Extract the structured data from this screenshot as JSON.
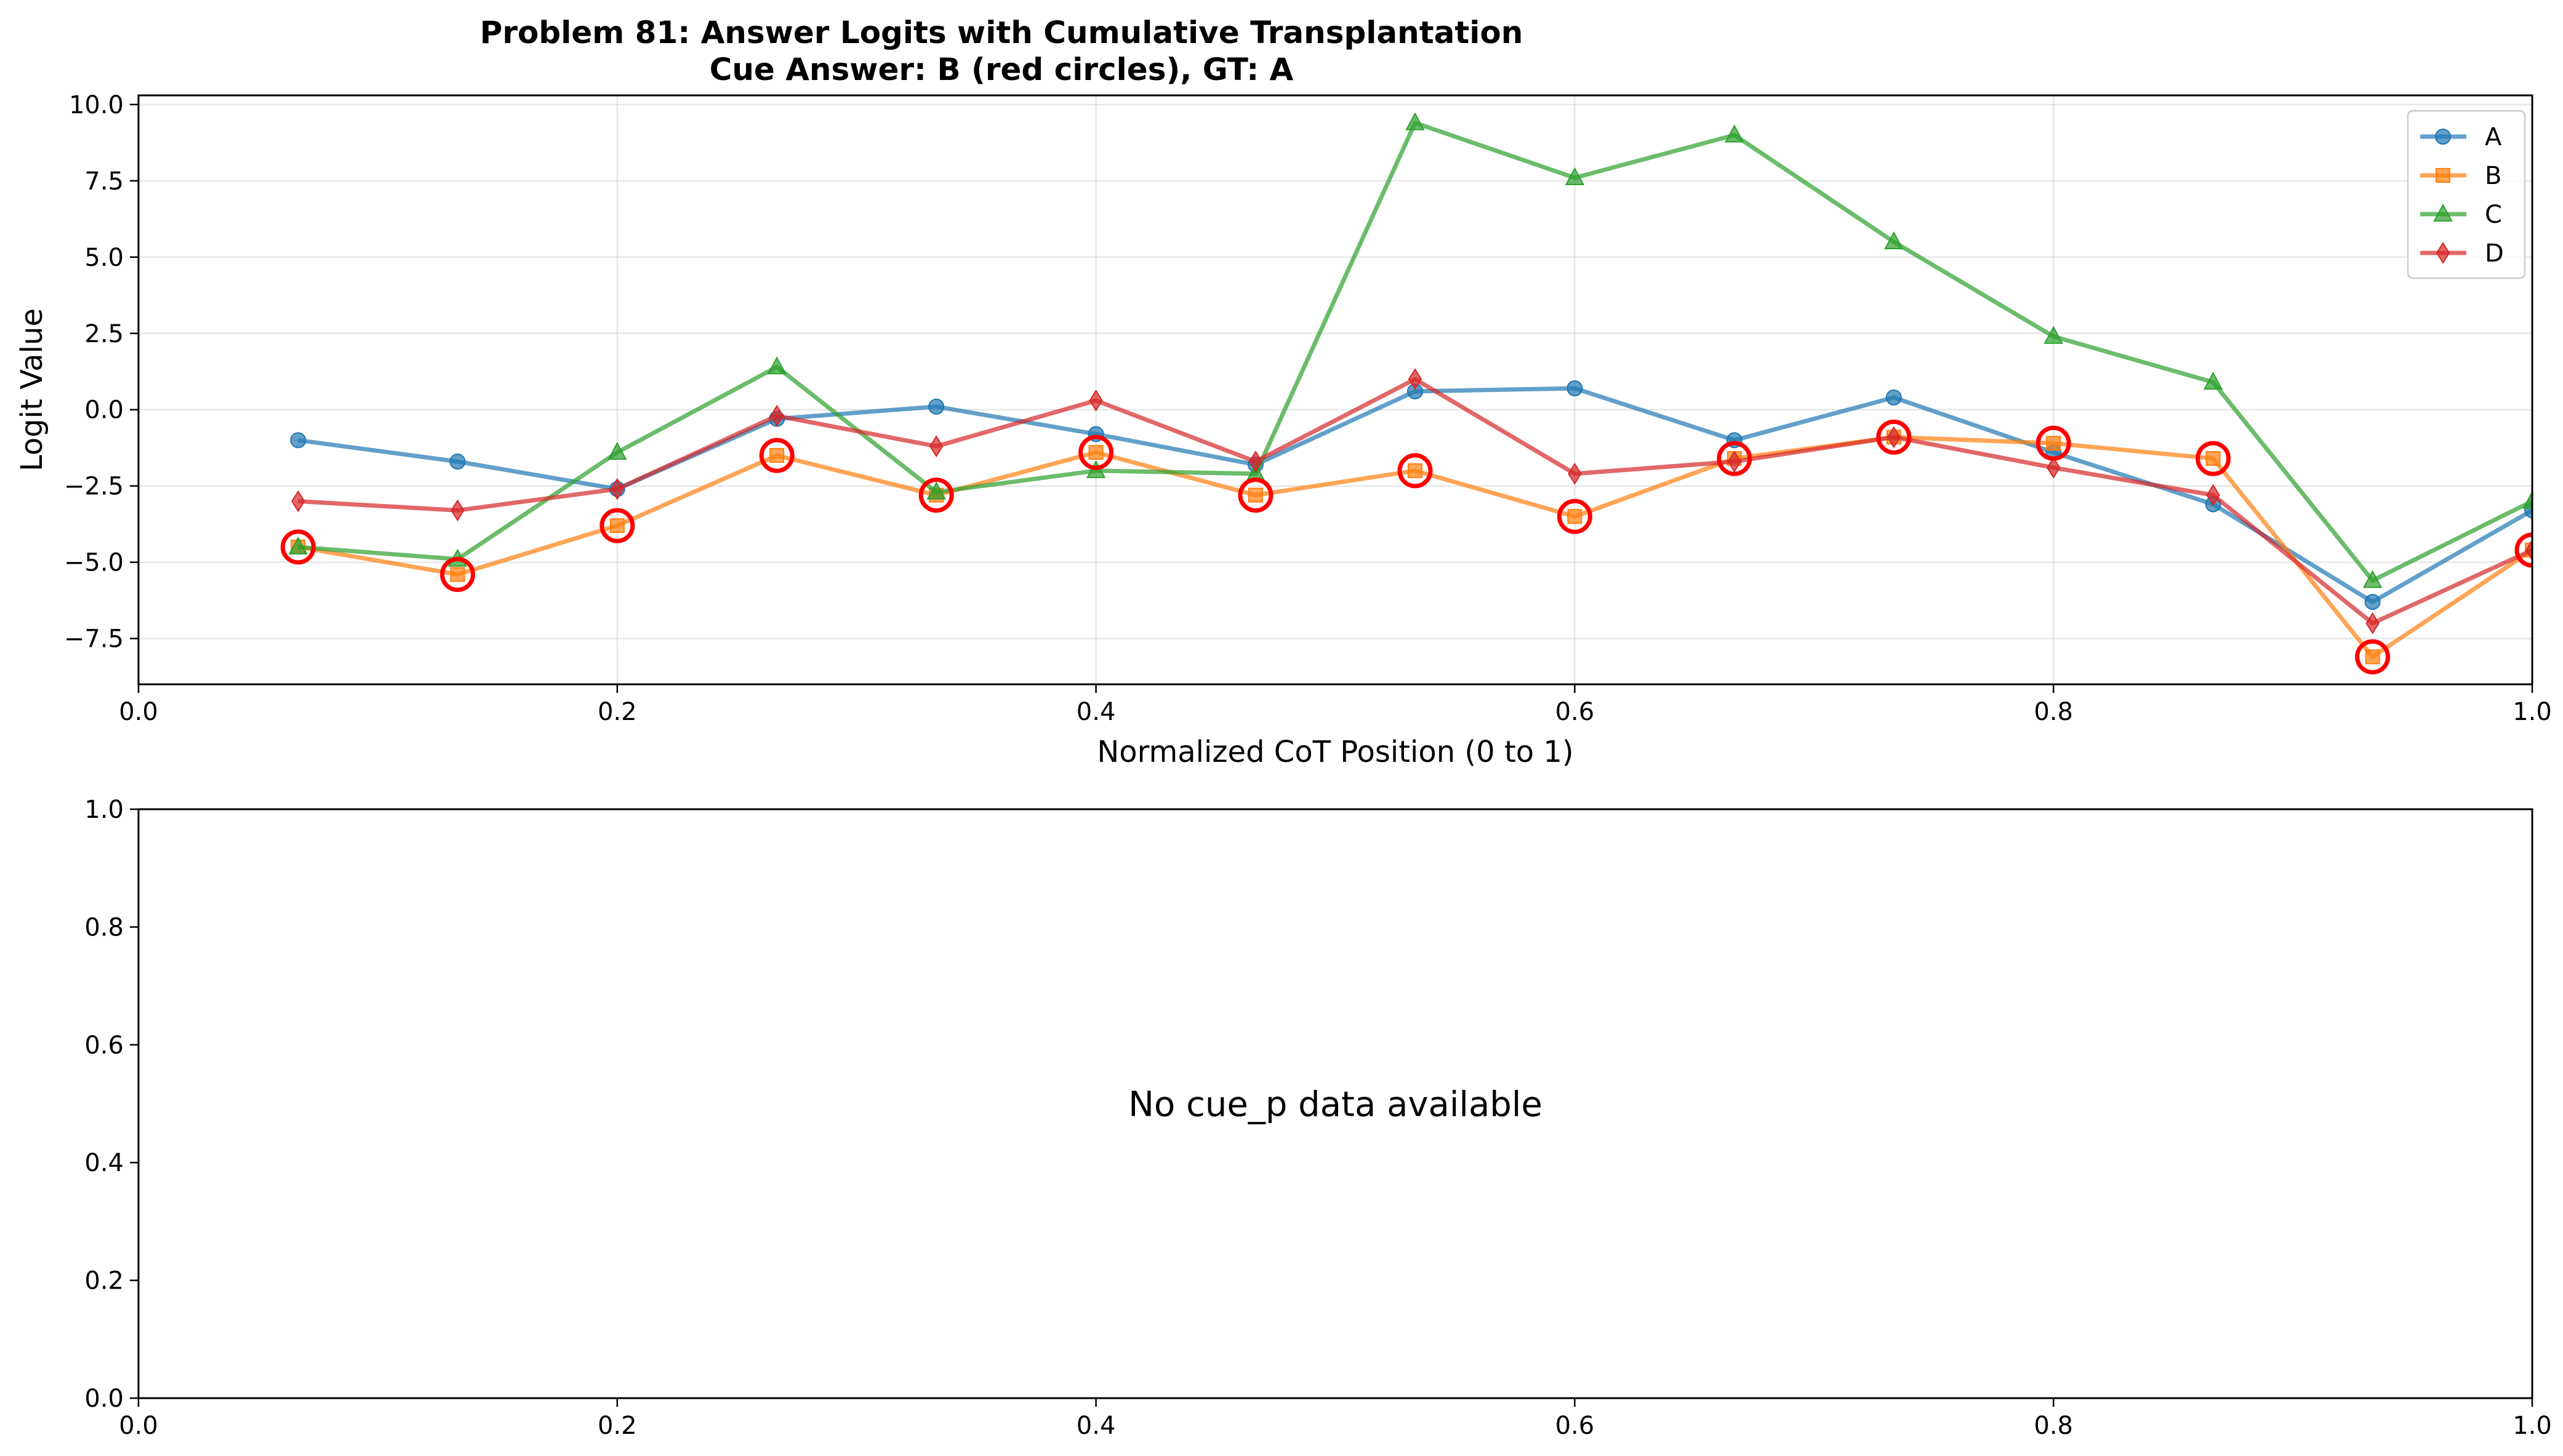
{
  "chart_data": [
    {
      "type": "line",
      "title": "Problem 81: Answer Logits with Cumulative Transplantation",
      "subtitle": "Cue Answer: B (red circles), GT: A",
      "xlabel": "Normalized CoT Position (0 to 1)",
      "ylabel": "Logit Value",
      "xlim": [
        0.0,
        1.0
      ],
      "ylim": [
        -9.0,
        10.3
      ],
      "xticks": [
        "0.0",
        "0.2",
        "0.4",
        "0.6",
        "0.8",
        "1.0"
      ],
      "yticks": [
        "−7.5",
        "−5.0",
        "−2.5",
        "0.0",
        "2.5",
        "5.0",
        "7.5",
        "10.0"
      ],
      "xtick_values": [
        0.0,
        0.2,
        0.4,
        0.6,
        0.8,
        1.0
      ],
      "ytick_values": [
        -7.5,
        -5.0,
        -2.5,
        0.0,
        2.5,
        5.0,
        7.5,
        10.0
      ],
      "grid": true,
      "legend_position": "top-right",
      "x": [
        0.0667,
        0.1333,
        0.2,
        0.2667,
        0.3333,
        0.4,
        0.4667,
        0.5333,
        0.6,
        0.6667,
        0.7333,
        0.8,
        0.8667,
        0.9333,
        1.0
      ],
      "series": [
        {
          "name": "A",
          "color": "#1f77b4",
          "marker": "circle",
          "values": [
            -1.0,
            -1.7,
            -2.6,
            -0.3,
            0.1,
            -0.8,
            -1.8,
            0.6,
            0.7,
            -1.0,
            0.4,
            -1.4,
            -3.1,
            -6.3,
            -3.3
          ]
        },
        {
          "name": "B",
          "color": "#ff7f0e",
          "marker": "square",
          "values": [
            -4.5,
            -5.4,
            -3.8,
            -1.5,
            -2.8,
            -1.4,
            -2.8,
            -2.0,
            -3.5,
            -1.6,
            -0.9,
            -1.1,
            -1.6,
            -8.1,
            -4.6
          ]
        },
        {
          "name": "C",
          "color": "#2ca02c",
          "marker": "triangle",
          "values": [
            -4.5,
            -4.9,
            -1.4,
            1.4,
            -2.7,
            -2.0,
            -2.1,
            9.4,
            7.6,
            9.0,
            5.5,
            2.4,
            0.9,
            -5.6,
            -3.0
          ]
        },
        {
          "name": "D",
          "color": "#d62728",
          "marker": "diamond",
          "values": [
            -3.0,
            -3.3,
            -2.6,
            -0.2,
            -1.2,
            0.3,
            -1.7,
            1.0,
            -2.1,
            -1.7,
            -0.9,
            -1.9,
            -2.8,
            -7.0,
            -4.6
          ]
        }
      ],
      "cue_highlight": {
        "series": "B",
        "color": "#ff0000",
        "marker": "open-circle"
      }
    },
    {
      "type": "line",
      "title": "",
      "xlabel": "",
      "ylabel": "",
      "xlim": [
        0.0,
        1.0
      ],
      "ylim": [
        0.0,
        1.0
      ],
      "xticks": [
        "0.0",
        "0.2",
        "0.4",
        "0.6",
        "0.8",
        "1.0"
      ],
      "yticks": [
        "0.0",
        "0.2",
        "0.4",
        "0.6",
        "0.8",
        "1.0"
      ],
      "xtick_values": [
        0.0,
        0.2,
        0.4,
        0.6,
        0.8,
        1.0
      ],
      "ytick_values": [
        0.0,
        0.2,
        0.4,
        0.6,
        0.8,
        1.0
      ],
      "grid": false,
      "series": [],
      "message": "No cue_p data available"
    }
  ]
}
